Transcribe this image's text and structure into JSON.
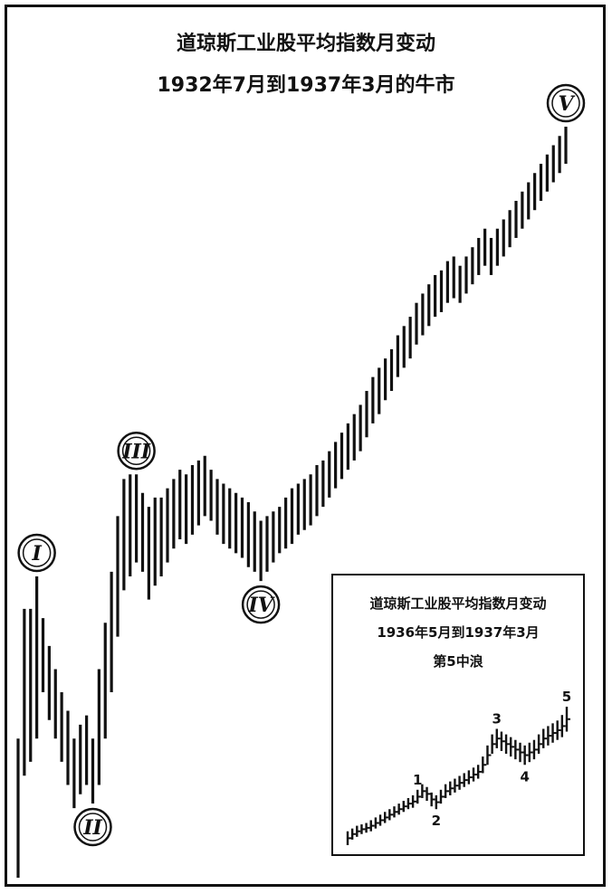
{
  "header": {
    "title": "道琼斯工业股平均指数月变动",
    "subtitle": "1932年7月到1937年3月的牛市"
  },
  "chart_data": {
    "type": "ohlc",
    "title": "道琼斯工业股平均指数月变动",
    "subtitle": "1932年7月到1937年3月的牛市",
    "wave_labels": [
      "I",
      "II",
      "III",
      "IV",
      "V"
    ],
    "waves": [
      {
        "label": "I",
        "bar_index": 3
      },
      {
        "label": "II",
        "bar_index": 12
      },
      {
        "label": "III",
        "bar_index": 19
      },
      {
        "label": "IV",
        "bar_index": 39
      },
      {
        "label": "V",
        "bar_index": 88
      }
    ],
    "bars": [
      [
        0.0,
        0.3
      ],
      [
        0.22,
        0.58
      ],
      [
        0.25,
        0.58
      ],
      [
        0.3,
        0.65
      ],
      [
        0.4,
        0.56
      ],
      [
        0.34,
        0.5
      ],
      [
        0.3,
        0.45
      ],
      [
        0.25,
        0.4
      ],
      [
        0.2,
        0.36
      ],
      [
        0.15,
        0.3
      ],
      [
        0.18,
        0.33
      ],
      [
        0.2,
        0.35
      ],
      [
        0.16,
        0.3
      ],
      [
        0.2,
        0.45
      ],
      [
        0.3,
        0.55
      ],
      [
        0.4,
        0.66
      ],
      [
        0.52,
        0.78
      ],
      [
        0.62,
        0.86
      ],
      [
        0.65,
        0.87
      ],
      [
        0.68,
        0.87
      ],
      [
        0.66,
        0.83
      ],
      [
        0.6,
        0.8
      ],
      [
        0.63,
        0.82
      ],
      [
        0.65,
        0.82
      ],
      [
        0.68,
        0.84
      ],
      [
        0.71,
        0.86
      ],
      [
        0.73,
        0.88
      ],
      [
        0.72,
        0.87
      ],
      [
        0.74,
        0.89
      ],
      [
        0.76,
        0.9
      ],
      [
        0.78,
        0.91
      ],
      [
        0.77,
        0.88
      ],
      [
        0.74,
        0.86
      ],
      [
        0.72,
        0.85
      ],
      [
        0.71,
        0.84
      ],
      [
        0.7,
        0.83
      ],
      [
        0.69,
        0.82
      ],
      [
        0.67,
        0.81
      ],
      [
        0.66,
        0.79
      ],
      [
        0.64,
        0.77
      ],
      [
        0.66,
        0.78
      ],
      [
        0.68,
        0.79
      ],
      [
        0.7,
        0.8
      ],
      [
        0.71,
        0.82
      ],
      [
        0.72,
        0.84
      ],
      [
        0.74,
        0.85
      ],
      [
        0.75,
        0.86
      ],
      [
        0.76,
        0.87
      ],
      [
        0.78,
        0.89
      ],
      [
        0.8,
        0.9
      ],
      [
        0.82,
        0.92
      ],
      [
        0.84,
        0.94
      ],
      [
        0.86,
        0.96
      ],
      [
        0.88,
        0.98
      ],
      [
        0.9,
        1.0
      ],
      [
        0.92,
        1.02
      ],
      [
        0.95,
        1.05
      ],
      [
        0.98,
        1.08
      ],
      [
        1.0,
        1.1
      ],
      [
        1.03,
        1.12
      ],
      [
        1.05,
        1.14
      ],
      [
        1.08,
        1.17
      ],
      [
        1.1,
        1.19
      ],
      [
        1.12,
        1.21
      ],
      [
        1.15,
        1.24
      ],
      [
        1.17,
        1.26
      ],
      [
        1.19,
        1.28
      ],
      [
        1.21,
        1.3
      ],
      [
        1.22,
        1.31
      ],
      [
        1.24,
        1.33
      ],
      [
        1.25,
        1.34
      ],
      [
        1.24,
        1.32
      ],
      [
        1.26,
        1.34
      ],
      [
        1.28,
        1.36
      ],
      [
        1.3,
        1.38
      ],
      [
        1.32,
        1.4
      ],
      [
        1.3,
        1.38
      ],
      [
        1.32,
        1.4
      ],
      [
        1.34,
        1.42
      ],
      [
        1.36,
        1.44
      ],
      [
        1.38,
        1.46
      ],
      [
        1.4,
        1.48
      ],
      [
        1.42,
        1.5
      ],
      [
        1.44,
        1.52
      ],
      [
        1.46,
        1.54
      ],
      [
        1.48,
        1.56
      ],
      [
        1.5,
        1.58
      ],
      [
        1.52,
        1.6
      ],
      [
        1.54,
        1.62
      ]
    ]
  },
  "inset": {
    "title": "道琼斯工业股平均指数月变动",
    "subtitle": "1936年5月到1937年3月",
    "caption": "第5中浪",
    "labels": [
      "1",
      "2",
      "3",
      "4",
      "5"
    ],
    "chart_data": {
      "type": "ohlc",
      "title": "道琼斯工业股平均指数月变动",
      "bars": [
        [
          0.0,
          0.1
        ],
        [
          0.04,
          0.12
        ],
        [
          0.06,
          0.14
        ],
        [
          0.08,
          0.15
        ],
        [
          0.09,
          0.16
        ],
        [
          0.1,
          0.18
        ],
        [
          0.12,
          0.2
        ],
        [
          0.14,
          0.22
        ],
        [
          0.16,
          0.24
        ],
        [
          0.18,
          0.26
        ],
        [
          0.2,
          0.28
        ],
        [
          0.22,
          0.3
        ],
        [
          0.24,
          0.32
        ],
        [
          0.26,
          0.34
        ],
        [
          0.27,
          0.36
        ],
        [
          0.3,
          0.4
        ],
        [
          0.34,
          0.44
        ],
        [
          0.32,
          0.42
        ],
        [
          0.28,
          0.38
        ],
        [
          0.26,
          0.36
        ],
        [
          0.3,
          0.4
        ],
        [
          0.34,
          0.44
        ],
        [
          0.36,
          0.46
        ],
        [
          0.38,
          0.48
        ],
        [
          0.4,
          0.5
        ],
        [
          0.42,
          0.52
        ],
        [
          0.44,
          0.54
        ],
        [
          0.46,
          0.56
        ],
        [
          0.48,
          0.58
        ],
        [
          0.52,
          0.64
        ],
        [
          0.58,
          0.72
        ],
        [
          0.66,
          0.8
        ],
        [
          0.7,
          0.84
        ],
        [
          0.68,
          0.82
        ],
        [
          0.66,
          0.8
        ],
        [
          0.64,
          0.78
        ],
        [
          0.62,
          0.76
        ],
        [
          0.6,
          0.74
        ],
        [
          0.58,
          0.72
        ],
        [
          0.6,
          0.74
        ],
        [
          0.62,
          0.76
        ],
        [
          0.66,
          0.8
        ],
        [
          0.7,
          0.84
        ],
        [
          0.72,
          0.86
        ],
        [
          0.74,
          0.88
        ],
        [
          0.76,
          0.9
        ],
        [
          0.78,
          0.94
        ],
        [
          0.82,
          1.0
        ]
      ],
      "waves": [
        {
          "label": "1",
          "bar_index": 15
        },
        {
          "label": "2",
          "bar_index": 19
        },
        {
          "label": "3",
          "bar_index": 32
        },
        {
          "label": "4",
          "bar_index": 38
        },
        {
          "label": "5",
          "bar_index": 47
        }
      ]
    }
  }
}
